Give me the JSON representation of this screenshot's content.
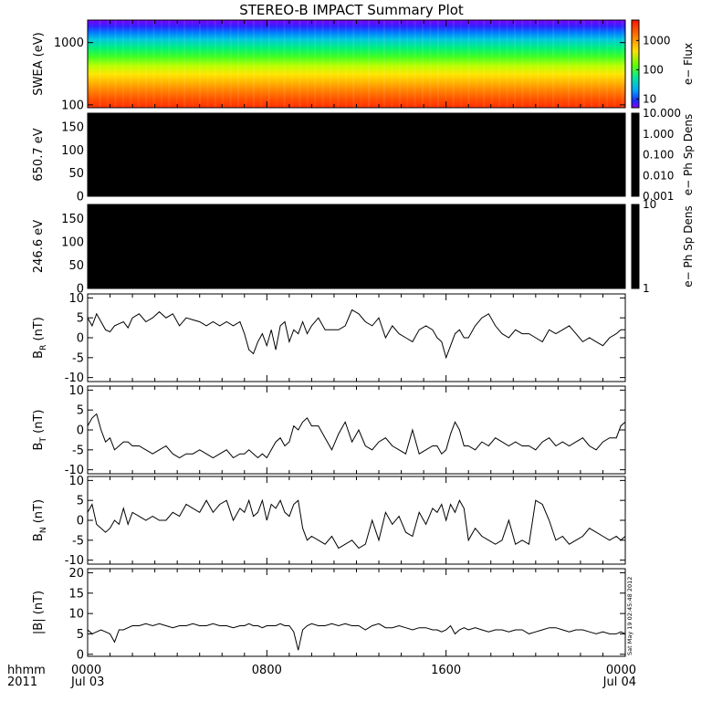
{
  "title": "STEREO-B IMPACT Summary Plot",
  "timestamp": "Sat May 19 02:45:48 2012",
  "x_axis": {
    "label_top": "hhmm",
    "label_bottom": "2011",
    "ticks": [
      {
        "value": 0,
        "top": "0000",
        "bottom": "Jul 03"
      },
      {
        "value": 8,
        "top": "0800",
        "bottom": ""
      },
      {
        "value": 16,
        "top": "1600",
        "bottom": ""
      },
      {
        "value": 24,
        "top": "0000",
        "bottom": "Jul 04"
      }
    ],
    "range_hours": [
      0,
      24
    ]
  },
  "chart_data": [
    {
      "id": "swea",
      "type": "heatmap",
      "ylabel": "SWEA (eV)",
      "ylog": true,
      "ylim": [
        90,
        2300
      ],
      "yticks": [
        "100",
        "1000"
      ],
      "ytick_values": [
        100,
        1000
      ],
      "colorbar": {
        "label": "e− Flux",
        "scale": "rainbow",
        "log": true,
        "range": [
          5,
          5000
        ],
        "ticks": [
          "10",
          "100",
          "1000"
        ],
        "tick_values": [
          10,
          100,
          1000
        ]
      },
      "band_energies_ev": [
        2000,
        1500,
        1000,
        700,
        500,
        350,
        250,
        180,
        130,
        100
      ],
      "band_flux": [
        6,
        15,
        40,
        90,
        200,
        420,
        900,
        1800,
        3000,
        4000
      ]
    },
    {
      "id": "pad650",
      "type": "heatmap",
      "ylabel": "650.7 eV",
      "ylim": [
        0,
        180
      ],
      "yticks": [
        "0",
        "50",
        "100",
        "150"
      ],
      "ytick_values": [
        0,
        50,
        100,
        150
      ],
      "colorbar": {
        "label": "e− Ph Sp Dens",
        "scale": "black",
        "log": true,
        "range": [
          0.001,
          10
        ],
        "ticks": [
          "10.000",
          "1.000",
          "0.100",
          "0.010",
          "0.001"
        ],
        "tick_values": [
          10,
          1,
          0.1,
          0.01,
          0.001
        ]
      }
    },
    {
      "id": "pad246",
      "type": "heatmap",
      "ylabel": "246.6 eV",
      "ylim": [
        0,
        180
      ],
      "yticks": [
        "0",
        "50",
        "100",
        "150"
      ],
      "ytick_values": [
        0,
        50,
        100,
        150
      ],
      "colorbar": {
        "label": "e− Ph Sp Dens",
        "scale": "black",
        "log": true,
        "range": [
          1,
          10
        ],
        "ticks": [
          "10",
          "1"
        ],
        "tick_values": [
          10,
          1
        ]
      }
    },
    {
      "id": "br",
      "type": "line",
      "ylabel_main": "B",
      "ylabel_sub": "R",
      "ylabel_unit": "(nT)",
      "ylim": [
        -11,
        11
      ],
      "yticks": [
        "-10",
        "-5",
        "0",
        "5",
        "10"
      ],
      "ytick_values": [
        -10,
        -5,
        0,
        5,
        10
      ],
      "x_hours": [
        0.0,
        0.2,
        0.4,
        0.6,
        0.8,
        1.0,
        1.2,
        1.4,
        1.6,
        1.8,
        2.0,
        2.3,
        2.6,
        2.9,
        3.2,
        3.5,
        3.8,
        4.1,
        4.4,
        4.7,
        5.0,
        5.3,
        5.6,
        5.9,
        6.2,
        6.5,
        6.8,
        7.0,
        7.2,
        7.4,
        7.6,
        7.8,
        8.0,
        8.2,
        8.4,
        8.6,
        8.8,
        9.0,
        9.2,
        9.4,
        9.6,
        9.8,
        10.0,
        10.3,
        10.6,
        10.9,
        11.2,
        11.5,
        11.8,
        12.1,
        12.4,
        12.7,
        13.0,
        13.3,
        13.6,
        13.9,
        14.2,
        14.5,
        14.8,
        15.1,
        15.4,
        15.6,
        15.8,
        16.0,
        16.2,
        16.4,
        16.6,
        16.8,
        17.0,
        17.3,
        17.6,
        17.9,
        18.2,
        18.5,
        18.8,
        19.1,
        19.4,
        19.7,
        20.0,
        20.3,
        20.6,
        20.9,
        21.2,
        21.5,
        21.8,
        22.1,
        22.4,
        22.7,
        23.0,
        23.3,
        23.6,
        23.8,
        24.0
      ],
      "values": [
        5,
        3,
        6,
        4,
        2,
        1.5,
        3,
        3.5,
        4,
        2.5,
        5,
        6,
        4,
        5,
        6.5,
        5,
        6,
        3,
        5,
        4.5,
        4,
        3,
        4,
        3,
        4,
        3,
        4,
        1,
        -3,
        -4,
        -1,
        1,
        -2,
        2,
        -3,
        3,
        4,
        -1,
        2,
        1,
        4,
        1,
        3,
        5,
        2,
        2,
        2,
        3,
        7,
        6,
        4,
        3,
        5,
        0,
        3,
        1,
        0,
        -1,
        2,
        3,
        2,
        0,
        -1,
        -5,
        -2,
        1,
        2,
        0,
        0,
        3,
        5,
        6,
        3,
        1,
        0,
        2,
        1,
        1,
        0,
        -1,
        2,
        1,
        2,
        3,
        1,
        -1,
        0,
        -1,
        -2,
        0,
        1,
        2,
        2
      ]
    },
    {
      "id": "bt",
      "type": "line",
      "ylabel_main": "B",
      "ylabel_sub": "T",
      "ylabel_unit": "(nT)",
      "ylim": [
        -11,
        11
      ],
      "yticks": [
        "-10",
        "-5",
        "0",
        "5",
        "10"
      ],
      "ytick_values": [
        -10,
        -5,
        0,
        5,
        10
      ],
      "x_hours": [
        0.0,
        0.2,
        0.4,
        0.6,
        0.8,
        1.0,
        1.2,
        1.4,
        1.6,
        1.8,
        2.0,
        2.3,
        2.6,
        2.9,
        3.2,
        3.5,
        3.8,
        4.1,
        4.4,
        4.7,
        5.0,
        5.3,
        5.6,
        5.9,
        6.2,
        6.5,
        6.8,
        7.0,
        7.2,
        7.4,
        7.6,
        7.8,
        8.0,
        8.2,
        8.4,
        8.6,
        8.8,
        9.0,
        9.2,
        9.4,
        9.6,
        9.8,
        10.0,
        10.3,
        10.6,
        10.9,
        11.2,
        11.5,
        11.8,
        12.1,
        12.4,
        12.7,
        13.0,
        13.3,
        13.6,
        13.9,
        14.2,
        14.5,
        14.8,
        15.1,
        15.4,
        15.6,
        15.8,
        16.0,
        16.2,
        16.4,
        16.6,
        16.8,
        17.0,
        17.3,
        17.6,
        17.9,
        18.2,
        18.5,
        18.8,
        19.1,
        19.4,
        19.7,
        20.0,
        20.3,
        20.6,
        20.9,
        21.2,
        21.5,
        21.8,
        22.1,
        22.4,
        22.7,
        23.0,
        23.3,
        23.6,
        23.8,
        24.0
      ],
      "values": [
        1,
        3,
        4,
        0,
        -3,
        -2,
        -5,
        -4,
        -3,
        -3,
        -4,
        -4,
        -5,
        -6,
        -5,
        -4,
        -6,
        -7,
        -6,
        -6,
        -5,
        -6,
        -7,
        -6,
        -5,
        -7,
        -6,
        -6,
        -5,
        -6,
        -7,
        -6,
        -7,
        -5,
        -3,
        -2,
        -4,
        -3,
        1,
        0,
        2,
        3,
        1,
        1,
        -2,
        -5,
        -1,
        2,
        -3,
        0,
        -4,
        -5,
        -3,
        -2,
        -4,
        -5,
        -6,
        0,
        -6,
        -5,
        -4,
        -4,
        -6,
        -5,
        -1,
        2,
        0,
        -4,
        -4,
        -5,
        -3,
        -4,
        -2,
        -3,
        -4,
        -3,
        -4,
        -4,
        -5,
        -3,
        -2,
        -4,
        -3,
        -4,
        -3,
        -2,
        -4,
        -5,
        -3,
        -2,
        -2,
        1,
        2
      ]
    },
    {
      "id": "bn",
      "type": "line",
      "ylabel_main": "B",
      "ylabel_sub": "N",
      "ylabel_unit": "(nT)",
      "ylim": [
        -11,
        11
      ],
      "yticks": [
        "-10",
        "-5",
        "0",
        "5",
        "10"
      ],
      "ytick_values": [
        -10,
        -5,
        0,
        5,
        10
      ],
      "x_hours": [
        0.0,
        0.2,
        0.4,
        0.6,
        0.8,
        1.0,
        1.2,
        1.4,
        1.6,
        1.8,
        2.0,
        2.3,
        2.6,
        2.9,
        3.2,
        3.5,
        3.8,
        4.1,
        4.4,
        4.7,
        5.0,
        5.3,
        5.6,
        5.9,
        6.2,
        6.5,
        6.8,
        7.0,
        7.2,
        7.4,
        7.6,
        7.8,
        8.0,
        8.2,
        8.4,
        8.6,
        8.8,
        9.0,
        9.2,
        9.4,
        9.6,
        9.8,
        10.0,
        10.3,
        10.6,
        10.9,
        11.2,
        11.5,
        11.8,
        12.1,
        12.4,
        12.7,
        13.0,
        13.3,
        13.6,
        13.9,
        14.2,
        14.5,
        14.8,
        15.1,
        15.4,
        15.6,
        15.8,
        16.0,
        16.2,
        16.4,
        16.6,
        16.8,
        17.0,
        17.3,
        17.6,
        17.9,
        18.2,
        18.5,
        18.8,
        19.1,
        19.4,
        19.7,
        20.0,
        20.3,
        20.6,
        20.9,
        21.2,
        21.5,
        21.8,
        22.1,
        22.4,
        22.7,
        23.0,
        23.3,
        23.6,
        23.8,
        24.0
      ],
      "values": [
        2,
        4,
        -1,
        -2,
        -3,
        -2,
        0,
        -1,
        3,
        -1,
        2,
        1,
        0,
        1,
        0,
        0,
        2,
        1,
        4,
        3,
        2,
        5,
        2,
        4,
        5,
        0,
        3,
        2,
        5,
        1,
        2,
        5,
        0,
        4,
        3,
        5,
        2,
        1,
        4,
        5,
        -2,
        -5,
        -4,
        -5,
        -6,
        -4,
        -7,
        -6,
        -5,
        -7,
        -6,
        0,
        -5,
        2,
        -1,
        1,
        -3,
        -4,
        2,
        -1,
        3,
        2,
        4,
        0,
        4,
        2,
        5,
        3,
        -5,
        -2,
        -4,
        -5,
        -6,
        -5,
        0,
        -6,
        -5,
        -6,
        5,
        4,
        0,
        -5,
        -4,
        -6,
        -5,
        -4,
        -2,
        -3,
        -4,
        -5,
        -4,
        -5,
        -4
      ]
    },
    {
      "id": "bmag",
      "type": "line",
      "ylabel_main": "|B|",
      "ylabel_sub": "",
      "ylabel_unit": "(nT)",
      "ylim": [
        -0.5,
        21
      ],
      "yticks": [
        "0",
        "5",
        "10",
        "15",
        "20"
      ],
      "ytick_values": [
        0,
        5,
        10,
        15,
        20
      ],
      "x_hours": [
        0.0,
        0.2,
        0.4,
        0.6,
        0.8,
        1.0,
        1.2,
        1.4,
        1.6,
        1.8,
        2.0,
        2.3,
        2.6,
        2.9,
        3.2,
        3.5,
        3.8,
        4.1,
        4.4,
        4.7,
        5.0,
        5.3,
        5.6,
        5.9,
        6.2,
        6.5,
        6.8,
        7.0,
        7.2,
        7.4,
        7.6,
        7.8,
        8.0,
        8.2,
        8.4,
        8.6,
        8.8,
        9.0,
        9.2,
        9.4,
        9.6,
        9.8,
        10.0,
        10.3,
        10.6,
        10.9,
        11.2,
        11.5,
        11.8,
        12.1,
        12.4,
        12.7,
        13.0,
        13.3,
        13.6,
        13.9,
        14.2,
        14.5,
        14.8,
        15.1,
        15.4,
        15.6,
        15.8,
        16.0,
        16.2,
        16.4,
        16.6,
        16.8,
        17.0,
        17.3,
        17.6,
        17.9,
        18.2,
        18.5,
        18.8,
        19.1,
        19.4,
        19.7,
        20.0,
        20.3,
        20.6,
        20.9,
        21.2,
        21.5,
        21.8,
        22.1,
        22.4,
        22.7,
        23.0,
        23.3,
        23.6,
        23.8,
        24.0
      ],
      "values": [
        6,
        5,
        5.5,
        6,
        5.5,
        5,
        3,
        6,
        6,
        6.5,
        7,
        7,
        7.5,
        7,
        7.5,
        7,
        6.5,
        7,
        7,
        7.5,
        7,
        7,
        7.5,
        7,
        7,
        6.5,
        7,
        7,
        7.5,
        7,
        7,
        6.5,
        7,
        7,
        7,
        7.5,
        7,
        7,
        5.5,
        1,
        6,
        7,
        7.5,
        7,
        7,
        7.5,
        7,
        7.5,
        7,
        7,
        6,
        7,
        7.5,
        6.5,
        6.5,
        7,
        6.5,
        6,
        6.5,
        6.5,
        6,
        6,
        5.5,
        6,
        7,
        5,
        6,
        6.5,
        6,
        6.5,
        6,
        5.5,
        6,
        6,
        5.5,
        6,
        6,
        5,
        5.5,
        6,
        6.5,
        6.5,
        6,
        5.5,
        6,
        6,
        5.5,
        5,
        5.5,
        5,
        5,
        5.5,
        5
      ]
    }
  ]
}
